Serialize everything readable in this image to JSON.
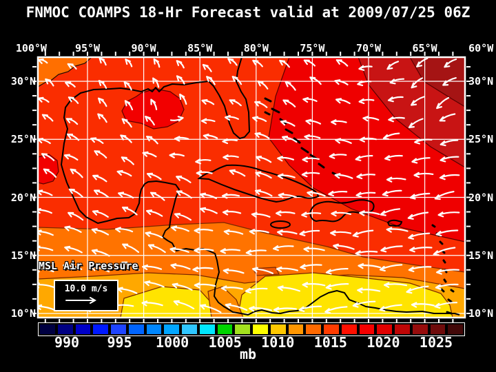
{
  "title": "FNMOC COAMPS 18-Hr Forecast valid at 2009/07/25 06Z",
  "axes": {
    "lon_labels": [
      "100°W",
      "95°W",
      "90°W",
      "85°W",
      "80°W",
      "75°W",
      "70°W",
      "65°W",
      "60°W"
    ],
    "lat_labels": [
      "30°N",
      "25°N",
      "20°N",
      "15°N",
      "10°N"
    ]
  },
  "map": {
    "overlay_label": "MSL Air Pressure",
    "wind_scale_label": "10.0 m/s",
    "band_colors": {
      "base": "#fa2d00",
      "red": "#ef0000",
      "dark_red": "#c81414",
      "darkest_red": "#a51414",
      "orange": "#ff7300",
      "amber": "#ffa800",
      "yellow": "#ffe400",
      "bright_red_blob": "#f20000",
      "orange_wedge": "#ff6f00",
      "deep_orange": "#f05800",
      "centam_orange": "#ff8c00"
    },
    "line_colors": {
      "grid": "#ffffff",
      "coast": "#000000",
      "contour_warm": "#7a2800",
      "contour_red": "#5a0000",
      "wind_arrow": "#ffffff"
    }
  },
  "colorbar": {
    "unit": "mb",
    "tick_labels": [
      "990",
      "995",
      "1000",
      "1005",
      "1010",
      "1015",
      "1020",
      "1025"
    ],
    "cell_colors": [
      "#000041",
      "#000083",
      "#0000c8",
      "#0019ff",
      "#1e44ff",
      "#0064ff",
      "#0087ff",
      "#00a5ff",
      "#2fc6ff",
      "#00e6ff",
      "#00d400",
      "#a3e11e",
      "#ffff00",
      "#ffc800",
      "#ff9600",
      "#ff6900",
      "#ff3c00",
      "#ff0f00",
      "#f50000",
      "#e10000",
      "#be0505",
      "#960c0c",
      "#6e0b0b",
      "#420808"
    ]
  }
}
